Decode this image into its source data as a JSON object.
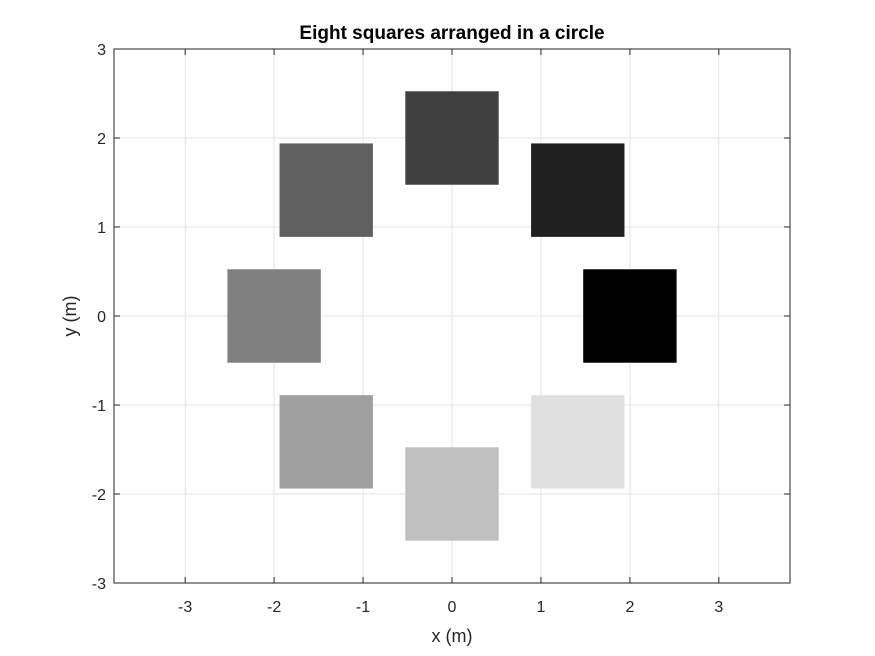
{
  "chart_data": {
    "type": "scatter",
    "title": "Eight squares arranged in a circle",
    "xlabel": "x (m)",
    "ylabel": "y (m)",
    "xlim": [
      -3.8,
      3.8
    ],
    "ylim": [
      -3,
      3
    ],
    "xticks": [
      "-3",
      "-2",
      "-1",
      "0",
      "1",
      "2",
      "3"
    ],
    "yticks": [
      "-3",
      "-2",
      "-1",
      "0",
      "1",
      "2",
      "3"
    ],
    "grid": true,
    "square_side": 1.05,
    "squares": [
      {
        "cx": 2.0,
        "cy": 0.0,
        "color": "#000000"
      },
      {
        "cx": 1.414,
        "cy": 1.414,
        "color": "#202020"
      },
      {
        "cx": 0.0,
        "cy": 2.0,
        "color": "#404040"
      },
      {
        "cx": -1.414,
        "cy": 1.414,
        "color": "#606060"
      },
      {
        "cx": -2.0,
        "cy": 0.0,
        "color": "#808080"
      },
      {
        "cx": -1.414,
        "cy": -1.414,
        "color": "#a0a0a0"
      },
      {
        "cx": 0.0,
        "cy": -2.0,
        "color": "#c0c0c0"
      },
      {
        "cx": 1.414,
        "cy": -1.414,
        "color": "#e0e0e0"
      }
    ]
  }
}
